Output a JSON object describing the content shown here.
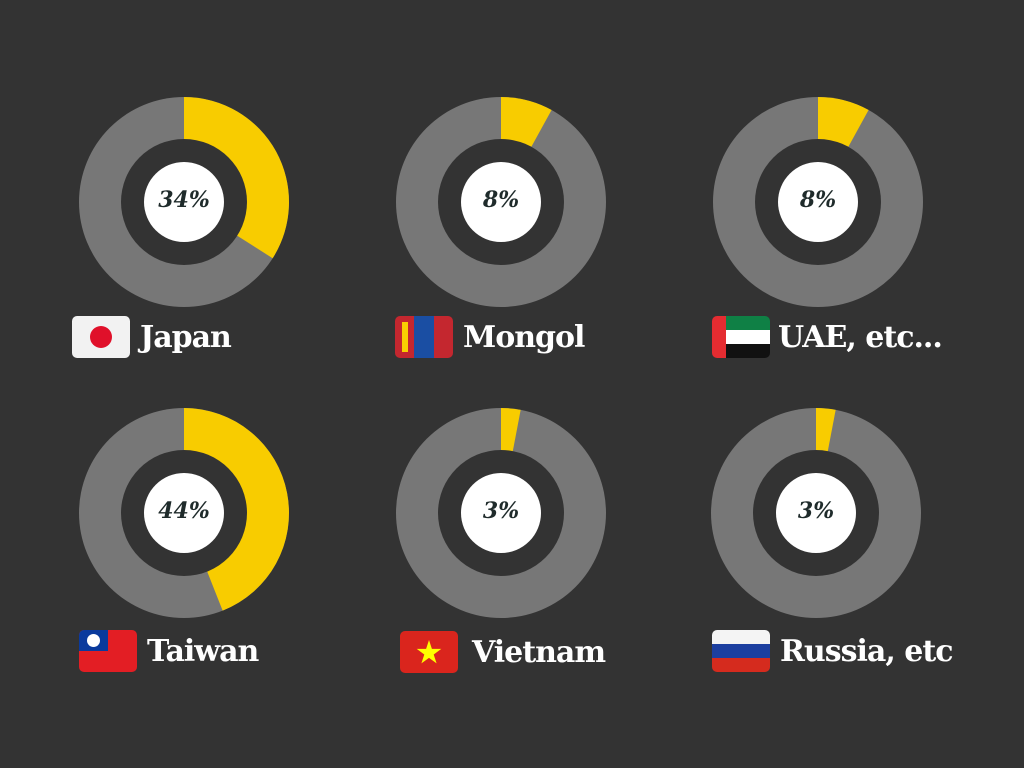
{
  "colors": {
    "highlight": "#f8cc00",
    "track": "#777777",
    "background": "#333333",
    "center": "#ffffff"
  },
  "chart_data": {
    "type": "pie",
    "items": [
      {
        "label": "Japan",
        "value": 34,
        "label_text": "34%",
        "flag": "japan-flag-icon"
      },
      {
        "label": "Mongol",
        "value": 8,
        "label_text": "8%",
        "flag": "mongolia-flag-icon"
      },
      {
        "label": "UAE, etc...",
        "value": 8,
        "label_text": "8%",
        "flag": "uae-flag-icon"
      },
      {
        "label": "Taiwan",
        "value": 44,
        "label_text": "44%",
        "flag": "taiwan-flag-icon"
      },
      {
        "label": "Vietnam",
        "value": 3,
        "label_text": "3%",
        "flag": "vietnam-flag-icon"
      },
      {
        "label": "Russia, etc",
        "value": 3,
        "label_text": "3%",
        "flag": "russia-flag-icon"
      }
    ]
  }
}
